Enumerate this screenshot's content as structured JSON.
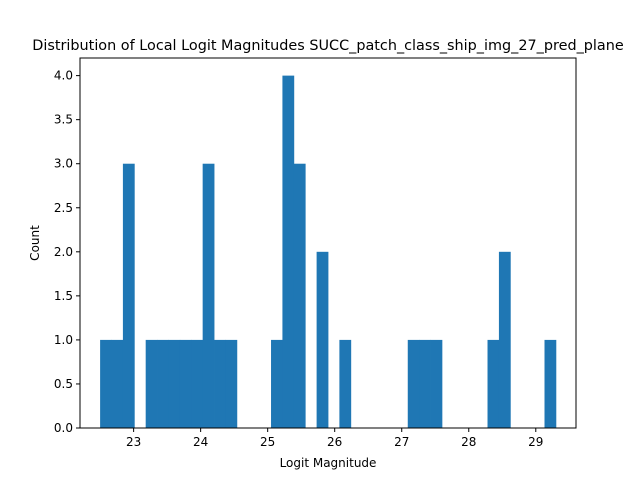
{
  "chart_data": {
    "type": "bar",
    "title": "Distribution of Local Logit Magnitudes SUCC_patch_class_ship_img_27_pred_plane",
    "xlabel": "Logit Magnitude",
    "ylabel": "Count",
    "xlim": [
      22.2,
      29.6
    ],
    "ylim": [
      0,
      4.2
    ],
    "xticks": [
      23,
      24,
      25,
      26,
      27,
      28,
      29
    ],
    "yticks": [
      0.0,
      0.5,
      1.0,
      1.5,
      2.0,
      2.5,
      3.0,
      3.5,
      4.0
    ],
    "ytick_labels": [
      "0.0",
      "0.5",
      "1.0",
      "1.5",
      "2.0",
      "2.5",
      "3.0",
      "3.5",
      "4.0"
    ],
    "bin_start": 22.5,
    "bin_width": 0.17,
    "counts": [
      1,
      1,
      3,
      0,
      1,
      1,
      1,
      1,
      1,
      3,
      1,
      1,
      0,
      0,
      0,
      1,
      4,
      3,
      0,
      2,
      0,
      1,
      0,
      0,
      0,
      0,
      0,
      1,
      1,
      1,
      0,
      0,
      0,
      0,
      1,
      2,
      0,
      0,
      0,
      1
    ],
    "color": "#1f77b4"
  }
}
